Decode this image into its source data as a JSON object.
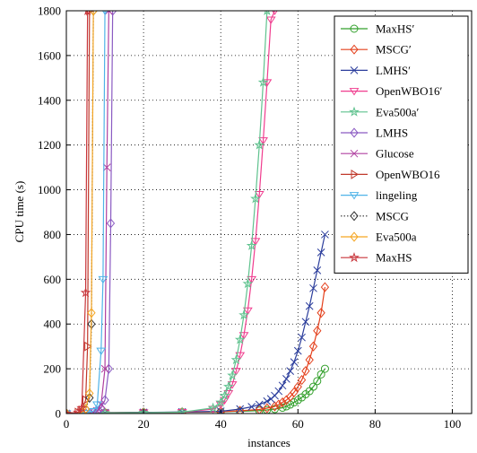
{
  "chart_data": {
    "type": "line",
    "title": "",
    "xlabel": "instances",
    "ylabel": "CPU time (s)",
    "xlim": [
      0,
      105
    ],
    "ylim": [
      0,
      1800
    ],
    "x_ticks": [
      "0",
      "20",
      "40",
      "60",
      "80",
      "100"
    ],
    "y_ticks": [
      "0",
      "200",
      "400",
      "600",
      "800",
      "1000",
      "1200",
      "1400",
      "1600",
      "1800"
    ],
    "grid": true,
    "grid_style": "dotted",
    "legend_position": "top-right",
    "series": [
      {
        "name": "MaxHS′",
        "color": "#33a02c",
        "marker": "circle",
        "line": "solid",
        "x": [
          0,
          10,
          20,
          30,
          40,
          45,
          50,
          52,
          54,
          56,
          57,
          58,
          59,
          60,
          61,
          62,
          63,
          64,
          65,
          66,
          67
        ],
        "y": [
          0,
          4,
          5,
          6,
          8,
          10,
          13,
          16,
          20,
          26,
          32,
          40,
          50,
          60,
          72,
          86,
          100,
          120,
          145,
          175,
          200
        ]
      },
      {
        "name": "MSCG′",
        "color": "#e4401c",
        "marker": "diamond",
        "line": "solid",
        "x": [
          0,
          10,
          20,
          30,
          40,
          45,
          50,
          52,
          54,
          55,
          56,
          57,
          58,
          59,
          60,
          61,
          62,
          63,
          64,
          65,
          66,
          67
        ],
        "y": [
          0,
          4,
          5,
          6,
          8,
          12,
          18,
          24,
          32,
          40,
          50,
          60,
          75,
          95,
          120,
          150,
          190,
          240,
          300,
          370,
          450,
          565
        ]
      },
      {
        "name": "LMHS′",
        "color": "#2b3d9c",
        "marker": "x",
        "line": "solid",
        "x": [
          0,
          10,
          20,
          30,
          40,
          45,
          48,
          50,
          52,
          53,
          54,
          55,
          56,
          57,
          58,
          59,
          60,
          61,
          62,
          63,
          64,
          65,
          66,
          67
        ],
        "y": [
          0,
          4,
          5,
          7,
          10,
          20,
          30,
          40,
          55,
          65,
          80,
          100,
          125,
          155,
          190,
          230,
          280,
          340,
          410,
          480,
          560,
          640,
          720,
          800
        ]
      },
      {
        "name": "OpenWBO16′",
        "color": "#f03c8e",
        "marker": "triangle-down",
        "line": "solid",
        "x": [
          0,
          10,
          20,
          30,
          38,
          40,
          41,
          42,
          43,
          44,
          45,
          46,
          47,
          48,
          49,
          50,
          51,
          52,
          53,
          54
        ],
        "y": [
          0,
          3,
          4,
          6,
          20,
          40,
          60,
          90,
          130,
          190,
          260,
          350,
          460,
          600,
          770,
          980,
          1220,
          1480,
          1760,
          1800
        ]
      },
      {
        "name": "Eva500a′",
        "color": "#5fc28e",
        "marker": "star",
        "line": "solid",
        "x": [
          0,
          10,
          20,
          30,
          38,
          40,
          41,
          42,
          43,
          44,
          45,
          46,
          47,
          48,
          49,
          50,
          51,
          52
        ],
        "y": [
          0,
          3,
          4,
          6,
          25,
          50,
          80,
          120,
          170,
          240,
          330,
          440,
          580,
          750,
          960,
          1200,
          1480,
          1800
        ]
      },
      {
        "name": "LMHS",
        "color": "#8a5ac2",
        "marker": "diamond",
        "line": "solid",
        "x": [
          0,
          5,
          7,
          8,
          9,
          10,
          11,
          11.5,
          12
        ],
        "y": [
          0,
          2,
          5,
          10,
          25,
          60,
          200,
          850,
          1800
        ]
      },
      {
        "name": "Glucose",
        "color": "#b040a0",
        "marker": "x",
        "line": "solid",
        "x": [
          0,
          5,
          7,
          8,
          9,
          10,
          10.5,
          11
        ],
        "y": [
          0,
          2,
          5,
          12,
          40,
          200,
          1100,
          1800
        ]
      },
      {
        "name": "OpenWBO16",
        "color": "#c0392b",
        "marker": "triangle-right",
        "line": "solid",
        "x": [
          0,
          3,
          4,
          5,
          5.5,
          6
        ],
        "y": [
          0,
          5,
          15,
          60,
          300,
          1800
        ]
      },
      {
        "name": "lingeling",
        "color": "#4fb3e8",
        "marker": "triangle-down",
        "line": "solid",
        "x": [
          0,
          5,
          7,
          8,
          9,
          9.5,
          10
        ],
        "y": [
          0,
          2,
          10,
          40,
          280,
          600,
          1800
        ]
      },
      {
        "name": "MSCG",
        "color": "#333333",
        "marker": "diamond",
        "line": "dotted",
        "x": [
          0,
          4,
          5,
          6,
          6.5,
          7
        ],
        "y": [
          0,
          5,
          20,
          70,
          400,
          1800
        ]
      },
      {
        "name": "Eva500a",
        "color": "#f5a623",
        "marker": "diamond",
        "line": "solid",
        "x": [
          0,
          4,
          5,
          6,
          6.5,
          7
        ],
        "y": [
          0,
          5,
          20,
          90,
          450,
          1800
        ]
      },
      {
        "name": "MaxHS",
        "color": "#c8343a",
        "marker": "star",
        "line": "solid",
        "x": [
          0,
          3,
          4,
          5,
          5.5
        ],
        "y": [
          0,
          5,
          25,
          540,
          1800
        ]
      }
    ]
  }
}
